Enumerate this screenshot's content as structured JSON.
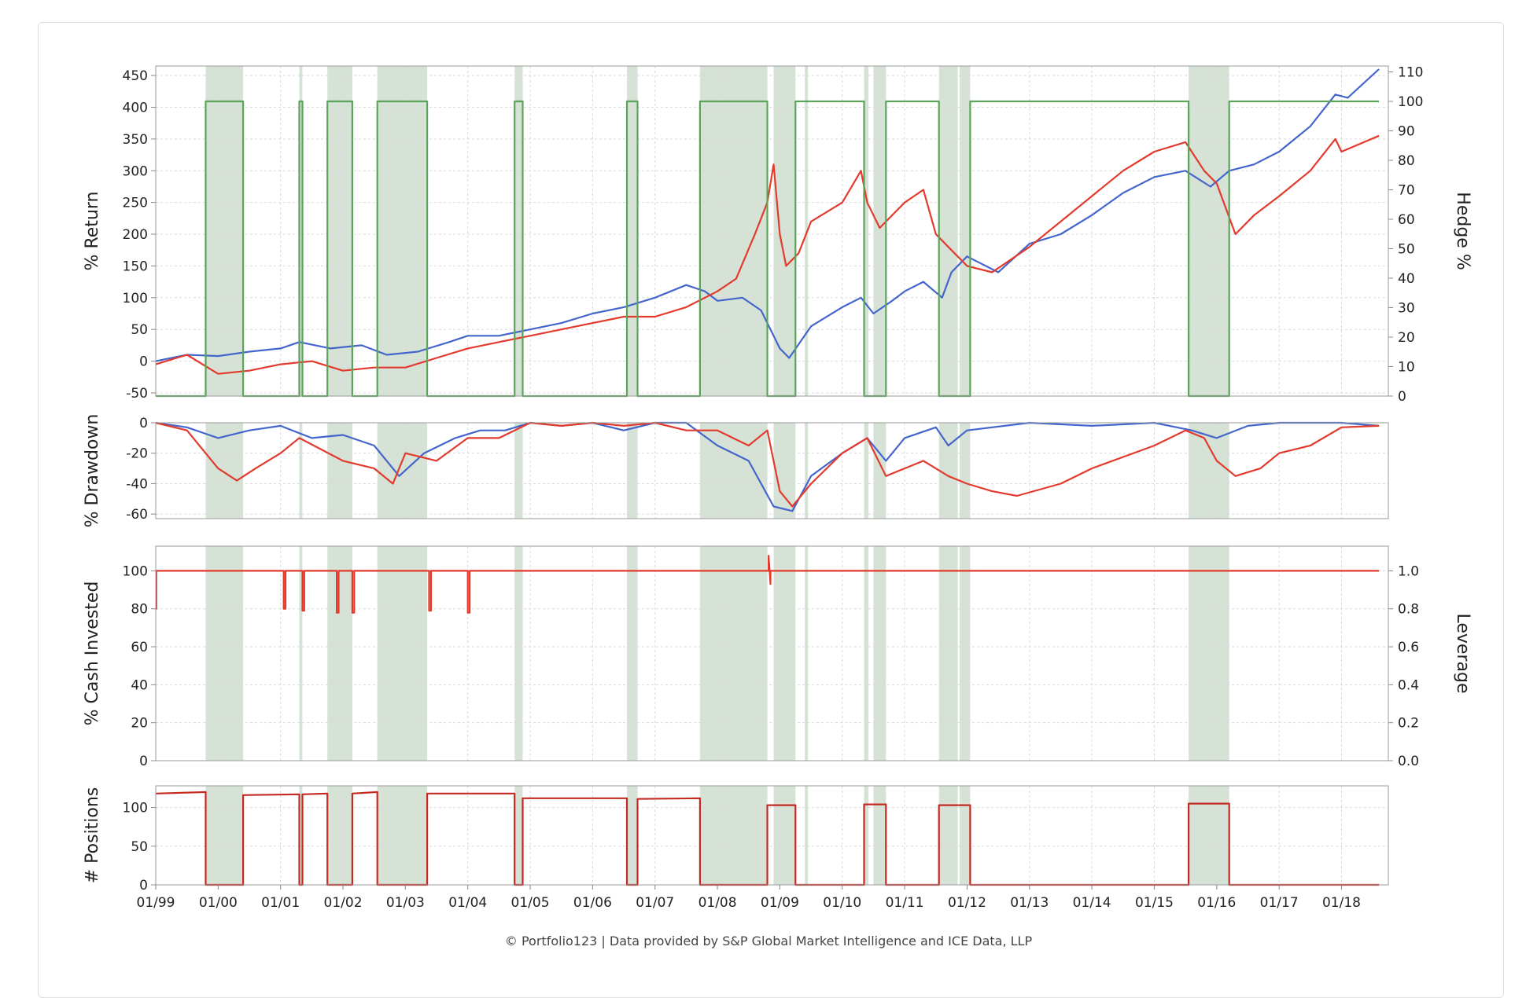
{
  "credit": "© Portfolio123 | Data provided by S&P Global Market Intelligence and ICE Data, LLP",
  "colors": {
    "blue": "#4466cc",
    "red": "#e33a2e",
    "green": "#5aa55a",
    "shade": "#c7d8c7",
    "darkred": "#c52a22",
    "grid": "#d9d9d9"
  },
  "chart_data": [
    {
      "type": "line",
      "ylabel": "% Return",
      "y2label": "Hedge %",
      "ylim": [
        -55,
        465
      ],
      "yticks": [
        "-50",
        "0",
        "50",
        "100",
        "150",
        "200",
        "250",
        "300",
        "350",
        "400",
        "450"
      ],
      "y2lim": [
        0,
        112
      ],
      "y2ticks": [
        "0",
        "10",
        "20",
        "30",
        "40",
        "50",
        "60",
        "70",
        "80",
        "90",
        "100",
        "110"
      ],
      "series": [
        {
          "color": "blue",
          "x": [
            1999.0,
            1999.5,
            2000.0,
            2000.5,
            2001.0,
            2001.3,
            2001.8,
            2002.3,
            2002.7,
            2003.2,
            2003.7,
            2004.0,
            2004.5,
            2005.0,
            2005.5,
            2006.0,
            2006.5,
            2007.0,
            2007.5,
            2007.8,
            2008.0,
            2008.4,
            2008.7,
            2009.0,
            2009.15,
            2009.5,
            2010.0,
            2010.3,
            2010.5,
            2010.8,
            2011.0,
            2011.3,
            2011.6,
            2011.75,
            2012.0,
            2012.5,
            2013.0,
            2013.5,
            2014.0,
            2014.5,
            2015.0,
            2015.5,
            2015.9,
            2016.2,
            2016.6,
            2017.0,
            2017.5,
            2017.9,
            2018.1,
            2018.6
          ],
          "y": [
            0,
            10,
            8,
            15,
            20,
            30,
            20,
            25,
            10,
            15,
            30,
            40,
            40,
            50,
            60,
            75,
            85,
            100,
            120,
            110,
            95,
            100,
            80,
            20,
            5,
            55,
            85,
            100,
            75,
            95,
            110,
            125,
            100,
            140,
            165,
            140,
            185,
            200,
            230,
            265,
            290,
            300,
            275,
            300,
            310,
            330,
            370,
            420,
            415,
            460
          ]
        },
        {
          "color": "red",
          "x": [
            1999.0,
            1999.5,
            2000.0,
            2000.5,
            2001.0,
            2001.5,
            2002.0,
            2002.5,
            2003.0,
            2003.5,
            2004.0,
            2004.5,
            2005.0,
            2005.5,
            2006.0,
            2006.5,
            2007.0,
            2007.5,
            2007.8,
            2008.0,
            2008.3,
            2008.6,
            2008.8,
            2008.9,
            2009.0,
            2009.1,
            2009.3,
            2009.5,
            2010.0,
            2010.3,
            2010.4,
            2010.6,
            2011.0,
            2011.3,
            2011.5,
            2011.7,
            2012.0,
            2012.4,
            2013.0,
            2013.5,
            2014.0,
            2014.5,
            2015.0,
            2015.5,
            2015.8,
            2016.0,
            2016.3,
            2016.6,
            2017.0,
            2017.5,
            2017.9,
            2018.0,
            2018.6
          ],
          "y": [
            -5,
            10,
            -20,
            -15,
            -5,
            0,
            -15,
            -10,
            -10,
            5,
            20,
            30,
            40,
            50,
            60,
            70,
            70,
            85,
            100,
            110,
            130,
            200,
            250,
            310,
            200,
            150,
            170,
            220,
            250,
            300,
            250,
            210,
            250,
            270,
            200,
            180,
            150,
            140,
            180,
            220,
            260,
            300,
            330,
            345,
            300,
            280,
            200,
            230,
            260,
            300,
            350,
            330,
            355
          ]
        },
        {
          "color": "green",
          "axis": "y2",
          "x": [
            1999.0,
            1999.8,
            1999.8,
            2000.4,
            2000.4,
            2001.3,
            2001.3,
            2001.35,
            2001.35,
            2001.75,
            2001.75,
            2002.15,
            2002.15,
            2002.55,
            2002.55,
            2003.35,
            2003.35,
            2004.75,
            2004.75,
            2004.88,
            2004.88,
            2006.55,
            2006.55,
            2006.72,
            2006.72,
            2007.72,
            2007.72,
            2008.8,
            2008.8,
            2009.25,
            2009.25,
            2010.35,
            2010.35,
            2010.7,
            2010.7,
            2011.55,
            2011.55,
            2012.05,
            2012.05,
            2015.55,
            2015.55,
            2016.2,
            2016.2,
            2018.6
          ],
          "y": [
            0,
            0,
            100,
            100,
            0,
            0,
            100,
            100,
            0,
            0,
            100,
            100,
            0,
            0,
            100,
            100,
            0,
            0,
            100,
            100,
            0,
            0,
            100,
            100,
            0,
            0,
            100,
            100,
            0,
            0,
            100,
            100,
            0,
            0,
            100,
            100,
            0,
            0,
            100,
            100,
            0,
            0,
            100,
            100
          ]
        }
      ]
    },
    {
      "type": "line",
      "ylabel": "% Drawdown",
      "ylim": [
        -63,
        0
      ],
      "yticks": [
        "-60",
        "-40",
        "-20",
        "0"
      ],
      "series": [
        {
          "color": "blue",
          "x": [
            1999.0,
            1999.5,
            2000.0,
            2000.5,
            2001.0,
            2001.5,
            2002.0,
            2002.5,
            2002.9,
            2003.3,
            2003.8,
            2004.2,
            2004.6,
            2005.0,
            2005.5,
            2006.0,
            2006.5,
            2007.0,
            2007.5,
            2008.0,
            2008.5,
            2008.9,
            2009.2,
            2009.5,
            2010.0,
            2010.4,
            2010.7,
            2011.0,
            2011.5,
            2011.7,
            2012.0,
            2013.0,
            2014.0,
            2015.0,
            2015.6,
            2016.0,
            2016.5,
            2017.0,
            2018.0,
            2018.6
          ],
          "y": [
            0,
            -3,
            -10,
            -5,
            -2,
            -10,
            -8,
            -15,
            -35,
            -20,
            -10,
            -5,
            -5,
            0,
            -2,
            0,
            -5,
            0,
            0,
            -15,
            -25,
            -55,
            -58,
            -35,
            -20,
            -10,
            -25,
            -10,
            -3,
            -15,
            -5,
            0,
            -2,
            0,
            -5,
            -10,
            -2,
            0,
            0,
            -2
          ]
        },
        {
          "color": "red",
          "x": [
            1999.0,
            1999.5,
            2000.0,
            2000.3,
            2000.6,
            2001.0,
            2001.3,
            2002.0,
            2002.5,
            2002.8,
            2003.0,
            2003.5,
            2004.0,
            2004.5,
            2005.0,
            2005.5,
            2006.0,
            2006.5,
            2007.0,
            2007.5,
            2008.0,
            2008.5,
            2008.8,
            2009.0,
            2009.2,
            2009.5,
            2010.0,
            2010.4,
            2010.7,
            2011.0,
            2011.3,
            2011.7,
            2012.0,
            2012.4,
            2012.8,
            2013.5,
            2014.0,
            2015.0,
            2015.5,
            2015.8,
            2016.0,
            2016.3,
            2016.7,
            2017.0,
            2017.5,
            2018.0,
            2018.6
          ],
          "y": [
            0,
            -5,
            -30,
            -38,
            -30,
            -20,
            -10,
            -25,
            -30,
            -40,
            -20,
            -25,
            -10,
            -10,
            0,
            -2,
            0,
            -2,
            0,
            -5,
            -5,
            -15,
            -5,
            -45,
            -55,
            -40,
            -20,
            -10,
            -35,
            -30,
            -25,
            -35,
            -40,
            -45,
            -48,
            -40,
            -30,
            -15,
            -5,
            -10,
            -25,
            -35,
            -30,
            -20,
            -15,
            -3,
            -2
          ]
        }
      ]
    },
    {
      "type": "line",
      "ylabel": "% Cash Invested",
      "y2label": "Leverage",
      "ylim": [
        0,
        113
      ],
      "yticks": [
        "0",
        "20",
        "40",
        "60",
        "80",
        "100"
      ],
      "y2lim": [
        0,
        1.13
      ],
      "y2ticks": [
        "0.0",
        "0.2",
        "0.4",
        "0.6",
        "0.8",
        "1.0"
      ],
      "series": [
        {
          "color": "red",
          "x": [
            1999.0,
            1999.01,
            1999.01,
            2001.05,
            2001.05,
            2001.08,
            2001.08,
            2001.35,
            2001.35,
            2001.38,
            2001.38,
            2001.9,
            2001.9,
            2001.93,
            2001.93,
            2002.15,
            2002.15,
            2002.18,
            2002.18,
            2003.38,
            2003.38,
            2003.41,
            2003.41,
            2004.0,
            2004.0,
            2004.03,
            2004.03,
            2008.82,
            2008.82,
            2008.85,
            2008.85,
            2018.6
          ],
          "y": [
            80,
            80,
            100,
            100,
            80,
            80,
            100,
            100,
            79,
            79,
            100,
            100,
            78,
            78,
            100,
            100,
            78,
            78,
            100,
            100,
            79,
            79,
            100,
            100,
            78,
            78,
            100,
            100,
            108,
            93,
            100,
            100
          ]
        }
      ]
    },
    {
      "type": "line",
      "ylabel": "# Positions",
      "ylim": [
        0,
        128
      ],
      "yticks": [
        "0",
        "50",
        "100"
      ],
      "xlim": [
        1999.0,
        2018.75
      ],
      "xticks": [
        "01/99",
        "01/00",
        "01/01",
        "01/02",
        "01/03",
        "01/04",
        "01/05",
        "01/06",
        "01/07",
        "01/08",
        "01/09",
        "01/10",
        "01/11",
        "01/12",
        "01/13",
        "01/14",
        "01/15",
        "01/16",
        "01/17",
        "01/18"
      ],
      "series": [
        {
          "color": "darkred",
          "x": [
            1999.0,
            1999.8,
            1999.8,
            2000.4,
            2000.4,
            2001.3,
            2001.3,
            2001.35,
            2001.35,
            2001.75,
            2001.75,
            2002.15,
            2002.15,
            2002.55,
            2002.55,
            2003.35,
            2003.35,
            2004.75,
            2004.75,
            2004.88,
            2004.88,
            2006.55,
            2006.55,
            2006.72,
            2006.72,
            2007.72,
            2007.72,
            2008.8,
            2008.8,
            2009.25,
            2009.25,
            2010.35,
            2010.35,
            2010.7,
            2010.7,
            2011.55,
            2011.55,
            2012.05,
            2012.05,
            2015.55,
            2015.55,
            2016.2,
            2016.2,
            2018.6
          ],
          "y": [
            118,
            120,
            0,
            0,
            116,
            117,
            0,
            0,
            117,
            118,
            0,
            0,
            118,
            120,
            0,
            0,
            118,
            118,
            0,
            0,
            112,
            112,
            0,
            0,
            111,
            112,
            0,
            0,
            103,
            103,
            0,
            0,
            104,
            104,
            0,
            0,
            103,
            103,
            0,
            0,
            105,
            105,
            0,
            0
          ]
        }
      ]
    }
  ],
  "shaded_periods": [
    [
      1999.8,
      2000.4
    ],
    [
      2001.3,
      2001.35
    ],
    [
      2001.75,
      2002.15
    ],
    [
      2002.55,
      2003.35
    ],
    [
      2004.75,
      2004.88
    ],
    [
      2006.55,
      2006.72
    ],
    [
      2007.72,
      2008.8
    ],
    [
      2008.9,
      2009.25
    ],
    [
      2009.4,
      2009.45
    ],
    [
      2010.35,
      2010.42
    ],
    [
      2010.5,
      2010.7
    ],
    [
      2011.55,
      2011.85
    ],
    [
      2011.88,
      2012.05
    ],
    [
      2015.55,
      2016.2
    ]
  ]
}
